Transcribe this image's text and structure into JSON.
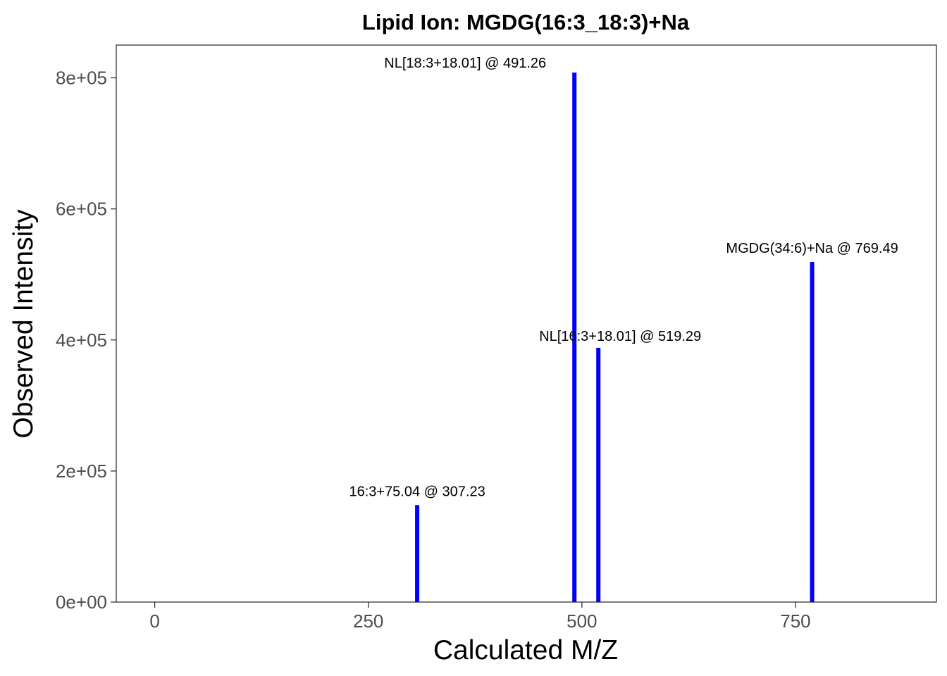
{
  "chart_data": {
    "type": "bar",
    "title": "Lipid Ion: MGDG(16:3_18:3)+Na",
    "xlabel": "Calculated M/Z",
    "ylabel": "Observed Intensity",
    "xlim": [
      -45,
      915
    ],
    "ylim": [
      0,
      850000
    ],
    "x_ticks": [
      {
        "value": 0,
        "label": "0"
      },
      {
        "value": 250,
        "label": "250"
      },
      {
        "value": 500,
        "label": "500"
      },
      {
        "value": 750,
        "label": "750"
      }
    ],
    "y_ticks": [
      {
        "value": 0,
        "label": "0e+00"
      },
      {
        "value": 200000,
        "label": "2e+05"
      },
      {
        "value": 400000,
        "label": "4e+05"
      },
      {
        "value": 600000,
        "label": "6e+05"
      },
      {
        "value": 800000,
        "label": "8e+05"
      }
    ],
    "grid": false,
    "series": [
      {
        "color": "#0000ff",
        "points": [
          {
            "x": 307.23,
            "y": 148000,
            "label": "16:3+75.04 @ 307.23"
          },
          {
            "x": 491.26,
            "y": 808000,
            "label": "NL[18:3+18.01] @ 491.26"
          },
          {
            "x": 519.29,
            "y": 388000,
            "label": "NL[16:3+18.01] @ 519.29"
          },
          {
            "x": 769.49,
            "y": 519000,
            "label": "MGDG(34:6)+Na @ 769.49"
          }
        ]
      }
    ]
  }
}
